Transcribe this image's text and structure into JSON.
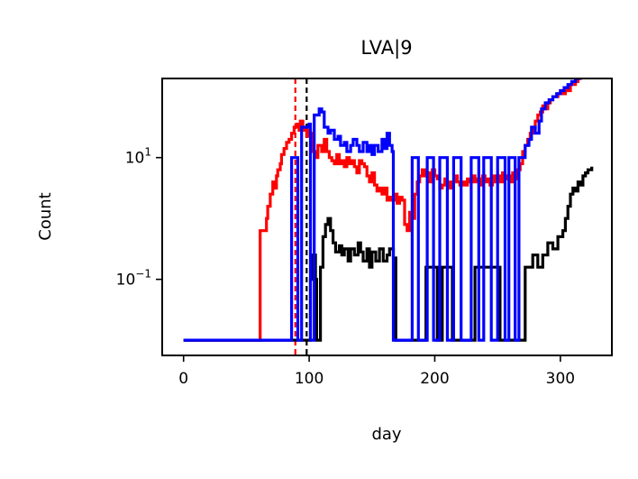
{
  "chart_data": {
    "type": "line",
    "title": "LVA|9",
    "xlabel": "day",
    "ylabel": "Count",
    "xlim": [
      -17,
      341
    ],
    "ylog": true,
    "ylim_log10": [
      -2.25,
      2.3
    ],
    "x_ticks": [
      0,
      100,
      200,
      300
    ],
    "y_ticks": [
      {
        "log10": -1,
        "base": "10",
        "exp": "−1"
      },
      {
        "log10": 1,
        "base": "10",
        "exp": "1"
      }
    ],
    "vlines": [
      {
        "x": 89,
        "color": "#ff0000",
        "style": "dashed"
      },
      {
        "x": 98,
        "color": "#000000",
        "style": "dashed"
      }
    ],
    "series": [
      {
        "color": "#ff0000",
        "points": [
          [
            0,
            -2
          ],
          [
            60,
            -2
          ],
          [
            61,
            -0.2
          ],
          [
            65,
            -0.2
          ],
          [
            66,
            0
          ],
          [
            67,
            0.2
          ],
          [
            69,
            0.4
          ],
          [
            71,
            0.6
          ],
          [
            72,
            0.5
          ],
          [
            74,
            0.7
          ],
          [
            75,
            0.8
          ],
          [
            77,
            0.9
          ],
          [
            78,
            1.05
          ],
          [
            80,
            1.15
          ],
          [
            82,
            1.25
          ],
          [
            84,
            1.3
          ],
          [
            86,
            1.4
          ],
          [
            88,
            1.5
          ],
          [
            90,
            1.55
          ],
          [
            92,
            1.45
          ],
          [
            93,
            1.6
          ],
          [
            95,
            1.5
          ],
          [
            96,
            1.45
          ],
          [
            98,
            1.35
          ],
          [
            100,
            1.45
          ],
          [
            101,
            1.4
          ],
          [
            103,
            1.1
          ],
          [
            105,
            1.0
          ],
          [
            107,
            1.2
          ],
          [
            110,
            1.1
          ],
          [
            112,
            1.3
          ],
          [
            114,
            1.1
          ],
          [
            116,
            1.0
          ],
          [
            118,
            0.95
          ],
          [
            120,
            0.9
          ],
          [
            122,
            1.05
          ],
          [
            124,
            0.9
          ],
          [
            126,
            0.95
          ],
          [
            128,
            0.85
          ],
          [
            130,
            1.0
          ],
          [
            132,
            0.9
          ],
          [
            134,
            0.95
          ],
          [
            136,
            0.85
          ],
          [
            138,
            0.75
          ],
          [
            140,
            0.95
          ],
          [
            142,
            0.9
          ],
          [
            144,
            0.85
          ],
          [
            146,
            0.7
          ],
          [
            148,
            0.6
          ],
          [
            150,
            0.75
          ],
          [
            152,
            0.55
          ],
          [
            154,
            0.45
          ],
          [
            156,
            0.5
          ],
          [
            158,
            0.4
          ],
          [
            160,
            0.5
          ],
          [
            162,
            0.3
          ],
          [
            164,
            0.35
          ],
          [
            166,
            0.3
          ],
          [
            168,
            0.4
          ],
          [
            170,
            0.25
          ],
          [
            172,
            0.35
          ],
          [
            174,
            0.3
          ],
          [
            176,
            -0.1
          ],
          [
            178,
            -0.2
          ],
          [
            180,
            0.1
          ],
          [
            182,
            0.0
          ],
          [
            184,
            0.4
          ],
          [
            186,
            0.6
          ],
          [
            188,
            0.7
          ],
          [
            190,
            0.8
          ],
          [
            192,
            0.7
          ],
          [
            194,
            0.75
          ],
          [
            196,
            0.6
          ],
          [
            198,
            0.8
          ],
          [
            200,
            0.7
          ],
          [
            202,
            0.65
          ],
          [
            204,
            0.5
          ],
          [
            206,
            0.55
          ],
          [
            208,
            0.65
          ],
          [
            210,
            0.6
          ],
          [
            212,
            0.5
          ],
          [
            214,
            0.6
          ],
          [
            216,
            0.7
          ],
          [
            218,
            0.6
          ],
          [
            220,
            0.55
          ],
          [
            222,
            0.6
          ],
          [
            224,
            0.55
          ],
          [
            226,
            0.65
          ],
          [
            228,
            0.6
          ],
          [
            230,
            0.7
          ],
          [
            232,
            0.6
          ],
          [
            234,
            0.65
          ],
          [
            236,
            0.55
          ],
          [
            238,
            0.7
          ],
          [
            240,
            0.6
          ],
          [
            242,
            0.65
          ],
          [
            244,
            0.55
          ],
          [
            246,
            0.7
          ],
          [
            248,
            0.6
          ],
          [
            250,
            0.7
          ],
          [
            252,
            0.6
          ],
          [
            254,
            0.75
          ],
          [
            256,
            0.65
          ],
          [
            258,
            0.7
          ],
          [
            260,
            0.6
          ],
          [
            262,
            0.75
          ],
          [
            264,
            0.65
          ],
          [
            266,
            0.8
          ],
          [
            268,
            0.9
          ],
          [
            270,
            1.1
          ],
          [
            272,
            1.2
          ],
          [
            274,
            1.3
          ],
          [
            276,
            1.4
          ],
          [
            278,
            1.5
          ],
          [
            280,
            1.6
          ],
          [
            282,
            1.7
          ],
          [
            284,
            1.75
          ],
          [
            286,
            1.85
          ],
          [
            288,
            1.8
          ],
          [
            290,
            1.9
          ],
          [
            292,
            1.95
          ],
          [
            294,
            2.0
          ],
          [
            296,
            2.0
          ],
          [
            298,
            2.05
          ],
          [
            300,
            2.1
          ],
          [
            302,
            2.05
          ],
          [
            304,
            2.15
          ],
          [
            306,
            2.1
          ],
          [
            308,
            2.2
          ],
          [
            310,
            2.2
          ],
          [
            312,
            2.25
          ],
          [
            314,
            2.3
          ],
          [
            316,
            2.35
          ],
          [
            318,
            2.4
          ],
          [
            320,
            2.4
          ],
          [
            322,
            2.45
          ],
          [
            325,
            2.45
          ]
        ]
      },
      {
        "color": "#000000",
        "points": [
          [
            0,
            -2
          ],
          [
            100,
            -2
          ],
          [
            101,
            -1.0
          ],
          [
            103,
            -0.6
          ],
          [
            105,
            -1.0
          ],
          [
            106,
            -2
          ],
          [
            108,
            -2
          ],
          [
            109,
            -0.8
          ],
          [
            111,
            -0.3
          ],
          [
            113,
            -0.1
          ],
          [
            115,
            0.0
          ],
          [
            117,
            -0.2
          ],
          [
            119,
            -0.4
          ],
          [
            121,
            -0.55
          ],
          [
            124,
            -0.45
          ],
          [
            126,
            -0.6
          ],
          [
            128,
            -0.5
          ],
          [
            131,
            -0.7
          ],
          [
            133,
            -0.5
          ],
          [
            136,
            -0.6
          ],
          [
            139,
            -0.4
          ],
          [
            141,
            -0.55
          ],
          [
            143,
            -0.7
          ],
          [
            146,
            -0.5
          ],
          [
            148,
            -0.8
          ],
          [
            150,
            -0.55
          ],
          [
            153,
            -0.7
          ],
          [
            156,
            -0.5
          ],
          [
            159,
            -0.7
          ],
          [
            162,
            -0.6
          ],
          [
            164,
            -0.5
          ],
          [
            167,
            -0.65
          ],
          [
            169,
            -2
          ],
          [
            191,
            -2
          ],
          [
            193,
            -0.8
          ],
          [
            200,
            -0.8
          ],
          [
            202,
            -2
          ],
          [
            204,
            -2
          ],
          [
            206,
            -0.8
          ],
          [
            212,
            -0.8
          ],
          [
            214,
            -2
          ],
          [
            230,
            -2
          ],
          [
            232,
            -0.8
          ],
          [
            250,
            -0.8
          ],
          [
            252,
            -2
          ],
          [
            270,
            -2
          ],
          [
            272,
            -0.8
          ],
          [
            276,
            -0.8
          ],
          [
            278,
            -0.6
          ],
          [
            282,
            -0.8
          ],
          [
            286,
            -0.6
          ],
          [
            290,
            -0.4
          ],
          [
            294,
            -0.5
          ],
          [
            298,
            -0.3
          ],
          [
            302,
            -0.2
          ],
          [
            304,
            0.0
          ],
          [
            306,
            0.2
          ],
          [
            308,
            0.4
          ],
          [
            310,
            0.5
          ],
          [
            312,
            0.45
          ],
          [
            314,
            0.6
          ],
          [
            316,
            0.55
          ],
          [
            318,
            0.7
          ],
          [
            320,
            0.75
          ],
          [
            322,
            0.8
          ],
          [
            325,
            0.85
          ]
        ]
      },
      {
        "color": "#0000ff",
        "points": [
          [
            0,
            -2
          ],
          [
            85,
            -2
          ],
          [
            86,
            1.0
          ],
          [
            90,
            1.0
          ],
          [
            91,
            -2
          ],
          [
            93,
            -2
          ],
          [
            94,
            1.5
          ],
          [
            98,
            1.5
          ],
          [
            100,
            1.55
          ],
          [
            101,
            -2
          ],
          [
            103,
            -2
          ],
          [
            104,
            1.7
          ],
          [
            108,
            1.8
          ],
          [
            110,
            1.75
          ],
          [
            112,
            1.5
          ],
          [
            115,
            1.4
          ],
          [
            117,
            1.45
          ],
          [
            120,
            1.3
          ],
          [
            123,
            1.35
          ],
          [
            125,
            1.2
          ],
          [
            128,
            1.25
          ],
          [
            130,
            1.1
          ],
          [
            133,
            1.2
          ],
          [
            135,
            1.3
          ],
          [
            138,
            1.2
          ],
          [
            140,
            1.1
          ],
          [
            143,
            1.25
          ],
          [
            146,
            1.1
          ],
          [
            148,
            1.2
          ],
          [
            150,
            1.05
          ],
          [
            152,
            1.2
          ],
          [
            155,
            1.1
          ],
          [
            158,
            1.3
          ],
          [
            160,
            1.15
          ],
          [
            162,
            1.4
          ],
          [
            164,
            1.2
          ],
          [
            166,
            1.1
          ],
          [
            167,
            -2
          ],
          [
            181,
            -2
          ],
          [
            182,
            1.0
          ],
          [
            186,
            1.0
          ],
          [
            187,
            -2
          ],
          [
            193,
            -2
          ],
          [
            194,
            1.0
          ],
          [
            198,
            1.0
          ],
          [
            199,
            -2
          ],
          [
            203,
            -2
          ],
          [
            204,
            1.0
          ],
          [
            209,
            1.0
          ],
          [
            210,
            -2
          ],
          [
            214,
            -2
          ],
          [
            215,
            1.0
          ],
          [
            220,
            1.0
          ],
          [
            221,
            -2
          ],
          [
            228,
            -2
          ],
          [
            229,
            1.0
          ],
          [
            234,
            1.0
          ],
          [
            235,
            -2
          ],
          [
            238,
            -2
          ],
          [
            239,
            1.0
          ],
          [
            244,
            1.0
          ],
          [
            245,
            -2
          ],
          [
            249,
            -2
          ],
          [
            250,
            1.0
          ],
          [
            255,
            1.0
          ],
          [
            256,
            -2
          ],
          [
            258,
            -2
          ],
          [
            259,
            1.0
          ],
          [
            263,
            1.0
          ],
          [
            264,
            -2
          ],
          [
            266,
            -2
          ],
          [
            267,
            1.0
          ],
          [
            270,
            1.0
          ],
          [
            272,
            1.2
          ],
          [
            275,
            1.3
          ],
          [
            277,
            1.5
          ],
          [
            280,
            1.4
          ],
          [
            283,
            1.6
          ],
          [
            285,
            1.8
          ],
          [
            288,
            1.9
          ],
          [
            291,
            1.95
          ],
          [
            294,
            2.0
          ],
          [
            297,
            2.05
          ],
          [
            300,
            2.1
          ],
          [
            303,
            2.15
          ],
          [
            306,
            2.2
          ],
          [
            309,
            2.25
          ],
          [
            312,
            2.3
          ],
          [
            315,
            2.4
          ],
          [
            318,
            2.45
          ],
          [
            321,
            2.5
          ],
          [
            324,
            2.48
          ],
          [
            326,
            2.45
          ]
        ]
      }
    ]
  }
}
